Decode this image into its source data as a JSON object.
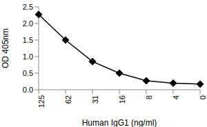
{
  "chart_data": {
    "type": "line",
    "x_label": "Human IgG1 (ng/ml)",
    "y_label": "OD 405nm",
    "categories": [
      "125",
      "62",
      "31",
      "16",
      "8",
      "4",
      "0"
    ],
    "values": [
      2.27,
      1.5,
      0.85,
      0.5,
      0.27,
      0.2,
      0.17
    ],
    "color": "#000000",
    "marker": "diamond",
    "ylim": [
      0,
      2.5
    ],
    "yticks": [
      {
        "value": 0,
        "label": "0.0"
      },
      0.5,
      {
        "value": 1,
        "label": "1.0"
      },
      1.5,
      {
        "value": 2,
        "label": "2.0"
      },
      2.5
    ],
    "grid": false
  }
}
